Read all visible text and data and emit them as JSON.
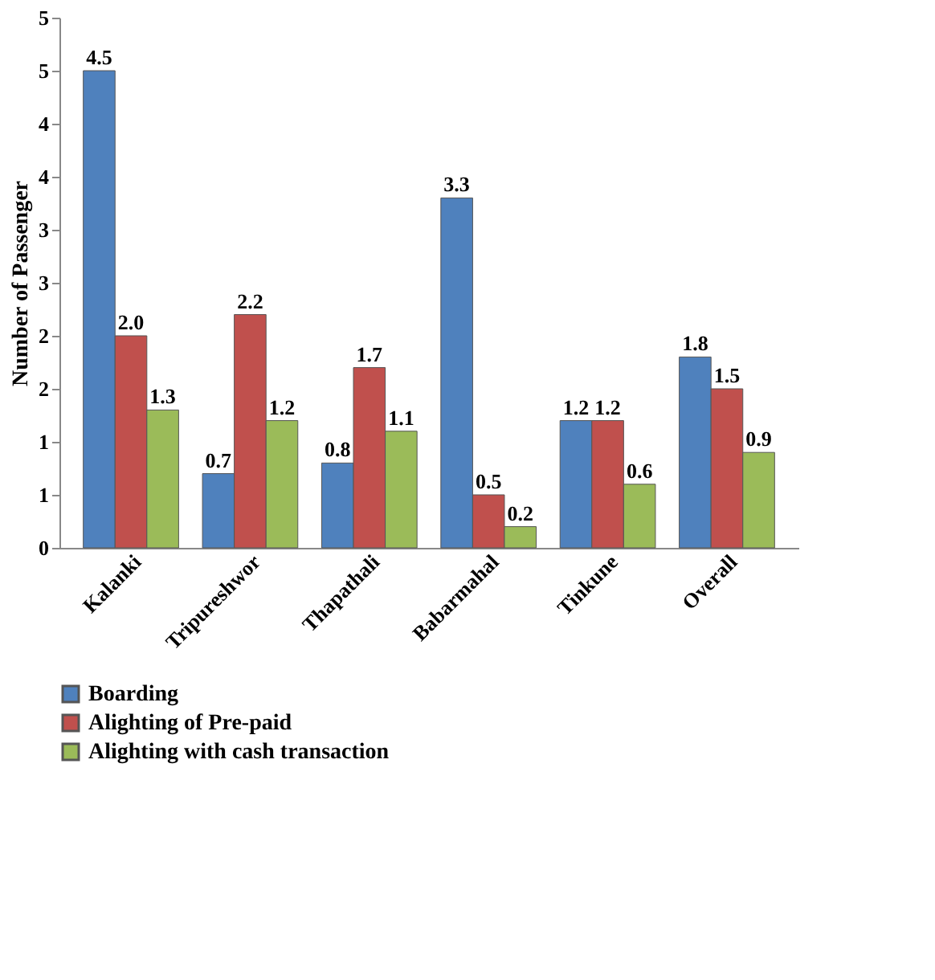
{
  "chart_data": {
    "type": "bar",
    "ylabel": "Number of Passenger",
    "categories": [
      "Kalanki",
      "Tripureshwor",
      "Thapathali",
      "Babarmahal",
      "Tinkune",
      "Overall"
    ],
    "series": [
      {
        "name": "Boarding",
        "color": "#4f81bd",
        "values": [
          4.5,
          0.7,
          0.8,
          3.3,
          1.2,
          1.8
        ],
        "value_labels": [
          "4.5",
          "0.7",
          "0.8",
          "3.3",
          "1.2",
          "1.8"
        ]
      },
      {
        "name": "Alighting of Pre-paid",
        "color": "#c0504d",
        "values": [
          2.0,
          2.2,
          1.7,
          0.5,
          1.2,
          1.5
        ],
        "value_labels": [
          "2.0",
          "2.2",
          "1.7",
          "0.5",
          "1.2",
          "1.5"
        ]
      },
      {
        "name": "Alighting with cash transaction",
        "color": "#9bbb59",
        "values": [
          1.3,
          1.2,
          1.1,
          0.2,
          0.6,
          0.9
        ],
        "value_labels": [
          "1.3",
          "1.2",
          "1.1",
          "0.2",
          "0.6",
          "0.9"
        ]
      }
    ],
    "ylim": [
      0,
      5
    ],
    "yticks": [
      0,
      {
        "value": 0.5,
        "label": "1"
      },
      1,
      {
        "value": 1.5,
        "label": "2"
      },
      2,
      {
        "value": 2.5,
        "label": "3"
      },
      3,
      {
        "value": 3.5,
        "label": "4"
      },
      4,
      {
        "value": 4.5,
        "label": "5"
      },
      5
    ],
    "grid": false,
    "legend": "bottom"
  }
}
